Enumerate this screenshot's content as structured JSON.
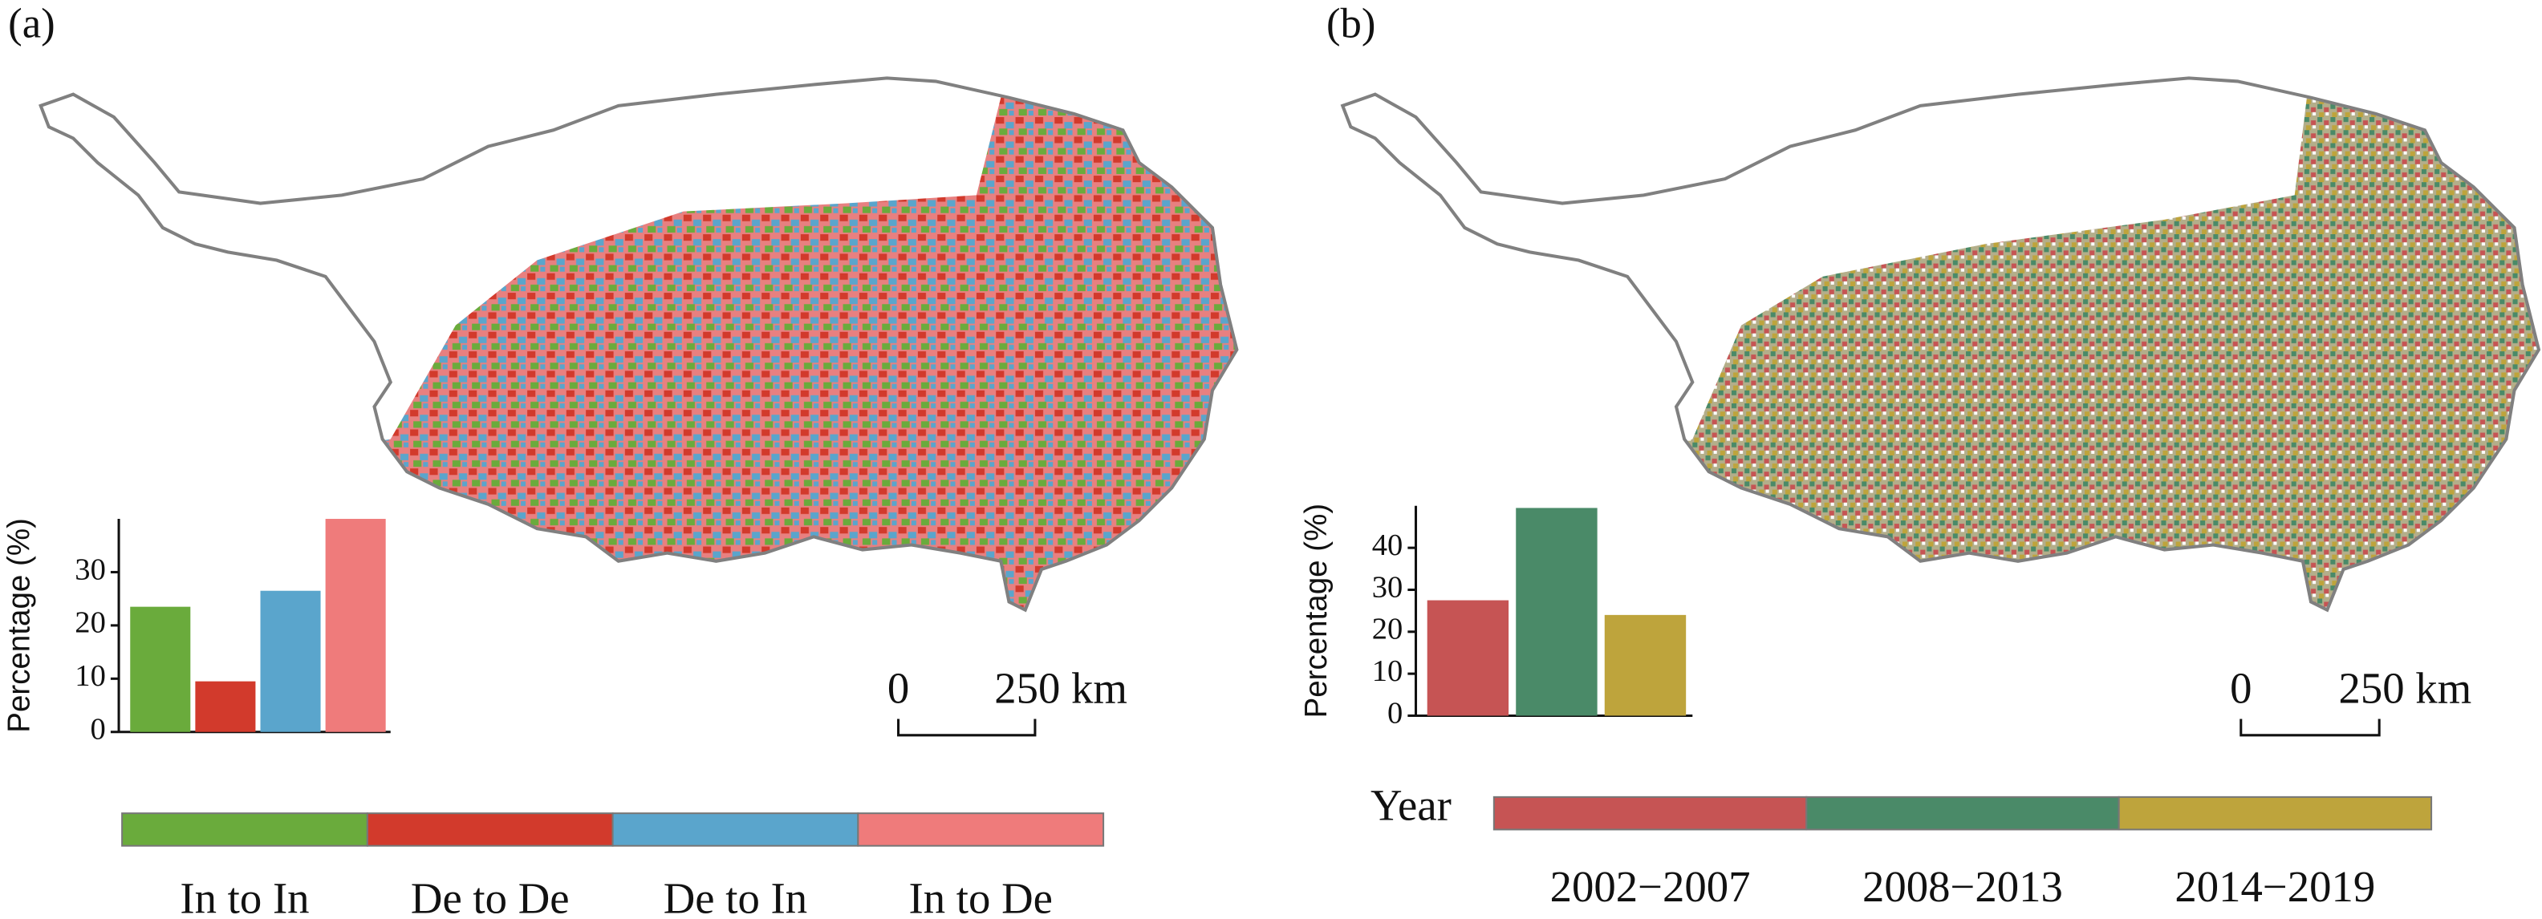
{
  "chart_data": [
    {
      "type": "bar",
      "panel": "(a)",
      "ylabel": "Percentage (%)",
      "categories": [
        "In to In",
        "De to De",
        "De to In",
        "In to De"
      ],
      "values": [
        23.5,
        9.5,
        26.5,
        40
      ],
      "colors": [
        "#6aab3c",
        "#d23a2c",
        "#5aa5cc",
        "#ef7b7b"
      ],
      "ylim": [
        0,
        40
      ],
      "yticks": [
        0,
        10,
        20,
        30
      ],
      "scale_labels": [
        "0",
        "250 km"
      ]
    },
    {
      "type": "bar",
      "panel": "(b)",
      "ylabel": "Percentage (%)",
      "legend_title": "Year",
      "categories": [
        "2002−2007",
        "2008−2013",
        "2014−2019"
      ],
      "values": [
        27.5,
        49.5,
        24
      ],
      "colors": [
        "#c65454",
        "#4a8a68",
        "#bea43c"
      ],
      "ylim": [
        0,
        50
      ],
      "yticks": [
        0,
        10,
        20,
        30,
        40
      ],
      "scale_labels": [
        "0",
        "250 km"
      ]
    }
  ]
}
